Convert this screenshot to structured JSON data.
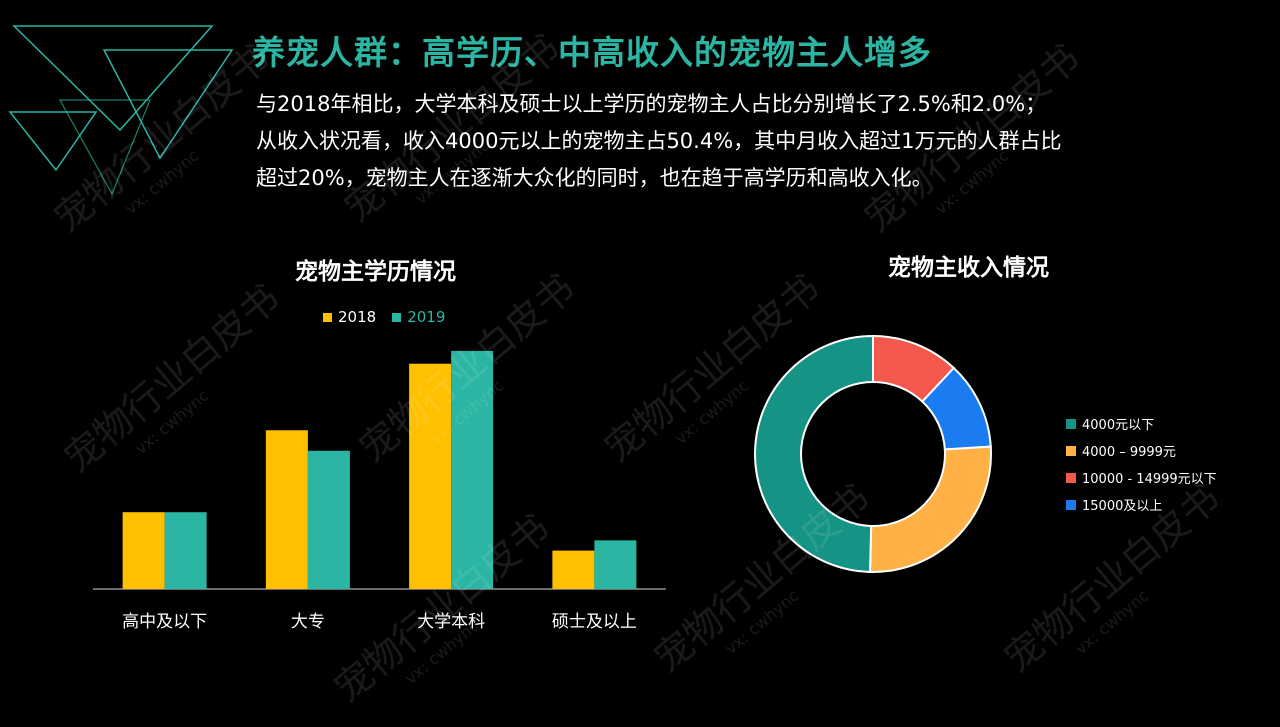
{
  "slide": {
    "title": "养宠人群：高学历、中高收入的宠物主人增多",
    "paragraph": [
      "与2018年相比，大学本科及硕士以上学历的宠物主人占比分别增长了2.5%和2.0%；",
      "从收入状况看，收入4000元以上的宠物主占50.4%，其中月收入超过1万元的人群占比",
      "超过20%，宠物主人在逐渐大众化的同时，也在趋于高学历和高收入化。"
    ],
    "watermark": {
      "main": "宠物行业白皮书",
      "sub": "vx: cwhync"
    }
  },
  "chart_data": [
    {
      "type": "bar",
      "title": "宠物主学历情况",
      "categories": [
        "高中及以下",
        "大专",
        "大学本科",
        "硕士及以上"
      ],
      "series": [
        {
          "name": "2018",
          "color": "#ffc000",
          "values": [
            15,
            31,
            44,
            7.5
          ]
        },
        {
          "name": "2019",
          "color": "#2bb5a3",
          "values": [
            15,
            27,
            46.5,
            9.5
          ]
        }
      ],
      "ylim": [
        0,
        50
      ],
      "legend": "top",
      "grid": false
    },
    {
      "type": "pie",
      "title": "宠物主收入情况",
      "labels": [
        "4000元以下",
        "4000 – 9999元",
        "10000 - 14999元以下",
        "15000及以上"
      ],
      "values": [
        49.6,
        26.4,
        12.0,
        12.0
      ],
      "colors": [
        "#159384",
        "#ffb146",
        "#f2584b",
        "#1a7cf0"
      ],
      "legend": "right"
    }
  ]
}
